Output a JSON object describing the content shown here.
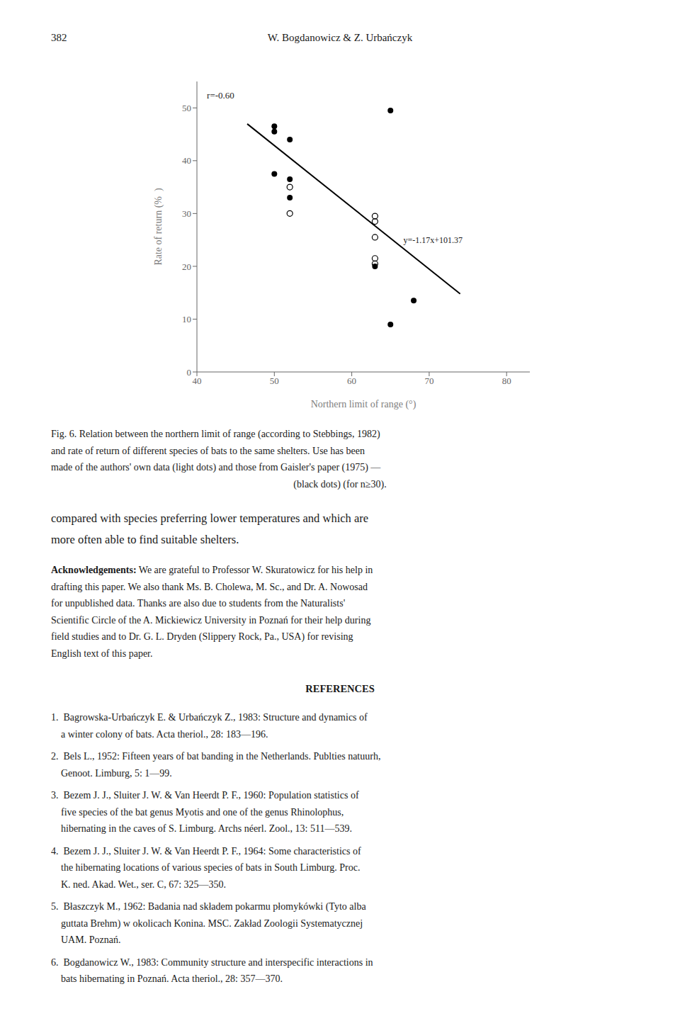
{
  "page": {
    "header_left": "382",
    "header_center": "W. Bogdanowicz & Z. Urbańczyk",
    "caption": [
      "Fig. 6. Relation between the northern limit of range (according to Stebbings, 1982)",
      "and rate of return of different species of bats to the same shelters. Use has been",
      "made of the authors' own data (light dots) and those from Gaisler's paper (1975) —",
      "(black dots) (for n≥30)."
    ],
    "paragraph": [
      "compared with species preferring lower temperatures and which are",
      "more often able to find suitable shelters."
    ],
    "acknowledgements_heading": "Acknowledgements:",
    "acknowledgements": [
      " We are grateful to Professor W. Skuratowicz for his help in",
      "drafting this paper. We also thank Ms. B. Cholewa, M. Sc., and Dr. A. Nowosad",
      "for unpublished data. Thanks are also due to students from the Naturalists'",
      "Scientific Circle of the A. Mickiewicz University in Poznań for their help during",
      "field studies and to Dr. G. L. Dryden (Slippery Rock, Pa., USA) for revising",
      "English text of this paper."
    ],
    "references_heading": "REFERENCES",
    "references": [
      [
        "1.  Bagrowska-Urbańczyk E. & Urbańczyk Z., 1983: Structure and dynamics of",
        "    a winter colony of bats. Acta theriol., 28: 183—196."
      ],
      [
        "2.  Bels L., 1952: Fifteen years of bat banding in the Netherlands. Publties natuurh,",
        "    Genoot. Limburg, 5: 1—99."
      ],
      [
        "3.  Bezem J. J., Sluiter J. W. & Van Heerdt P. F., 1960: Population statistics of",
        "    five species of the bat genus Myotis and one of the genus Rhinolophus,",
        "    hibernating in the caves of S. Limburg. Archs néerl. Zool., 13: 511—539."
      ],
      [
        "4.  Bezem J. J., Sluiter J. W. & Van Heerdt P. F., 1964: Some characteristics of",
        "    the hibernating locations of various species of bats in South Limburg. Proc.",
        "    K. ned. Akad. Wet., ser. C, 67: 325—350."
      ],
      [
        "5.  Błaszczyk M., 1962: Badania nad składem pokarmu płomykówki (Tyto alba",
        "    guttata Brehm) w okolicach Konina. MSC. Zakład Zoologii Systematycznej",
        "    UAM. Poznań."
      ],
      [
        "6.  Bogdanowicz W., 1983: Community structure and interspecific interactions in",
        "    bats hibernating in Poznań. Acta theriol., 28: 357—370."
      ]
    ]
  },
  "chart_data": {
    "type": "scatter",
    "xlabel": "Northern limit of range (°)",
    "ylabel": "Rate of return (% )",
    "xlim": [
      40,
      83
    ],
    "ylim": [
      0,
      55
    ],
    "xticks": [
      40,
      50,
      60,
      70,
      80
    ],
    "yticks": [
      0,
      10,
      20,
      30,
      40,
      50
    ],
    "grid": false,
    "annotations": [
      "r=-0.60",
      "y=-1.17x+101.37"
    ],
    "series": [
      {
        "type": "line",
        "line_style": "solid",
        "color": "#000000",
        "x": [
          46.5,
          74.0
        ],
        "values": [
          46.965,
          14.79
        ]
      },
      {
        "type": "scatter",
        "marker": "filled_circle",
        "color": "#000000",
        "x": [
          50,
          50,
          52,
          50,
          52,
          52,
          65,
          63,
          68,
          65
        ],
        "values": [
          45.5,
          46.5,
          44.0,
          37.5,
          36.5,
          33.0,
          49.5,
          20.0,
          13.5,
          9.0
        ]
      },
      {
        "type": "scatter",
        "marker": "open_circle",
        "color": "#000000",
        "x": [
          52,
          52,
          63,
          63,
          63,
          63,
          63
        ],
        "values": [
          35.0,
          30.0,
          29.5,
          28.5,
          25.5,
          21.5,
          20.5
        ]
      }
    ]
  }
}
